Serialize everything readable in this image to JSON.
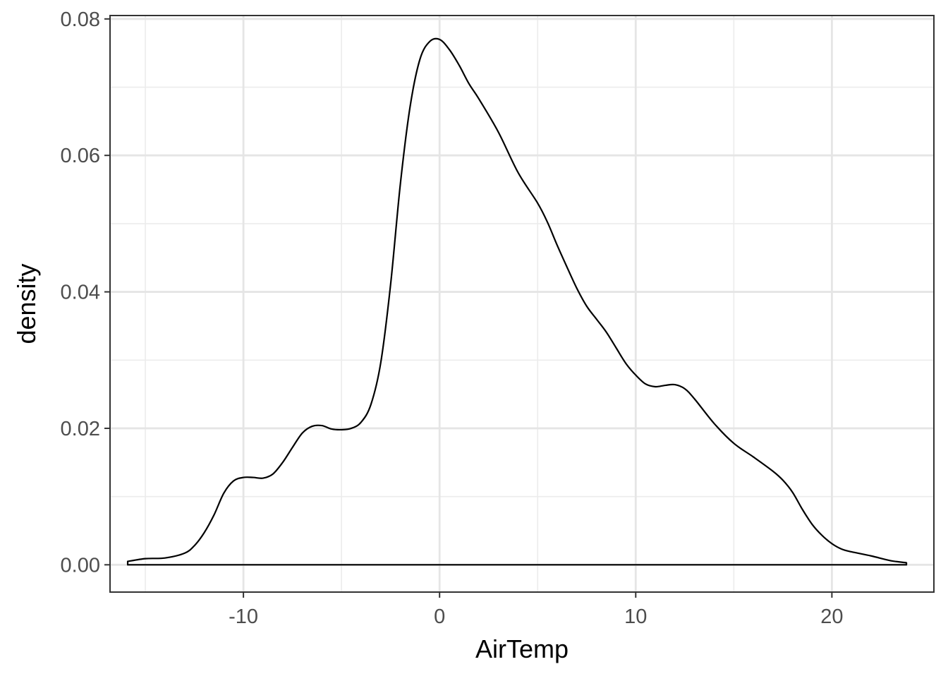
{
  "chart_data": {
    "type": "area",
    "title": "",
    "xlabel": "AirTemp",
    "ylabel": "density",
    "xlim": [
      -16.8,
      25.2
    ],
    "ylim": [
      -0.004,
      0.0805
    ],
    "x_ticks": [
      -10,
      0,
      10,
      20
    ],
    "x_tick_labels": [
      "-10",
      "0",
      "10",
      "20"
    ],
    "x_minor_ticks": [
      -15,
      -5,
      5,
      15
    ],
    "y_ticks": [
      0,
      0.02,
      0.04,
      0.06,
      0.08
    ],
    "y_tick_labels": [
      "0.00",
      "0.02",
      "0.04",
      "0.06",
      "0.08"
    ],
    "y_minor_ticks": [
      0.01,
      0.03,
      0.05,
      0.07
    ],
    "grid": true,
    "theme": "bw",
    "line_color": "#000000",
    "fill": "none",
    "series": [
      {
        "x": [
          -15.9,
          -15.0,
          -14.0,
          -13.0,
          -12.5,
          -12.0,
          -11.5,
          -11.0,
          -10.5,
          -10.0,
          -9.5,
          -9.0,
          -8.5,
          -8.0,
          -7.5,
          -7.0,
          -6.5,
          -6.0,
          -5.5,
          -5.0,
          -4.5,
          -4.0,
          -3.5,
          -3.0,
          -2.5,
          -2.0,
          -1.5,
          -1.0,
          -0.5,
          0.0,
          0.5,
          1.0,
          1.5,
          2.0,
          3.0,
          4.0,
          5.0,
          5.5,
          6.0,
          6.5,
          7.0,
          7.5,
          8.0,
          8.5,
          9.0,
          9.5,
          10.0,
          10.5,
          11.0,
          11.5,
          12.0,
          12.5,
          13.0,
          14.0,
          15.0,
          16.0,
          17.0,
          17.5,
          18.0,
          18.5,
          19.0,
          19.5,
          20.0,
          20.5,
          21.0,
          22.0,
          23.0,
          23.8
        ],
        "y": [
          0.0005,
          0.0009,
          0.001,
          0.0017,
          0.0028,
          0.0047,
          0.0073,
          0.0105,
          0.0123,
          0.0128,
          0.0128,
          0.0127,
          0.0133,
          0.015,
          0.0172,
          0.0193,
          0.0203,
          0.0204,
          0.0199,
          0.0198,
          0.02,
          0.0209,
          0.0235,
          0.0296,
          0.041,
          0.0558,
          0.0672,
          0.0741,
          0.0767,
          0.077,
          0.0755,
          0.0732,
          0.0705,
          0.0683,
          0.0634,
          0.0575,
          0.053,
          0.0502,
          0.0468,
          0.0436,
          0.0405,
          0.0379,
          0.036,
          0.0341,
          0.0318,
          0.0295,
          0.0278,
          0.0265,
          0.0261,
          0.0263,
          0.0264,
          0.0258,
          0.0243,
          0.0207,
          0.0178,
          0.0158,
          0.0137,
          0.0124,
          0.0106,
          0.0081,
          0.0059,
          0.0043,
          0.0031,
          0.0023,
          0.0019,
          0.0013,
          0.0006,
          0.0003
        ]
      }
    ]
  }
}
